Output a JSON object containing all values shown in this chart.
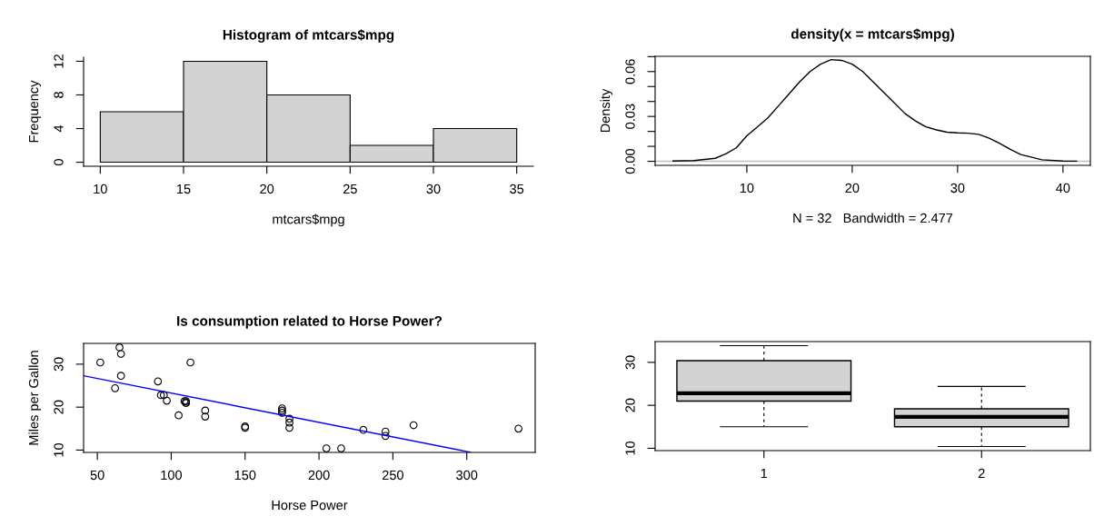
{
  "chart_data": [
    {
      "type": "histogram",
      "title": "Histogram of mtcars$mpg",
      "xlabel": "mtcars$mpg",
      "ylabel": "Frequency",
      "bins": [
        10,
        15,
        20,
        25,
        30,
        35
      ],
      "values": [
        6,
        12,
        8,
        2,
        4
      ],
      "color": "#d3d3d3",
      "xlim": [
        9,
        36
      ],
      "ylim": [
        -0.48,
        12.48
      ],
      "xticks": [
        10,
        15,
        20,
        25,
        30,
        35
      ],
      "yticks": [
        0,
        4,
        8,
        12
      ]
    },
    {
      "type": "line",
      "title": "density(x = mtcars$mpg)",
      "xlabel": "N = 32   Bandwidth = 2.477",
      "ylabel": "Density",
      "x": [
        3,
        5,
        7,
        8,
        9,
        10,
        11,
        12,
        13,
        14,
        15,
        16,
        17,
        18,
        19,
        20,
        21,
        22,
        23,
        24,
        25,
        26,
        27,
        28,
        29,
        30,
        31,
        32,
        33,
        34,
        35,
        36,
        38,
        40,
        41.3
      ],
      "series": [
        {
          "color": "#000000",
          "values": [
            0.0002,
            0.0005,
            0.002,
            0.005,
            0.009,
            0.017,
            0.023,
            0.029,
            0.037,
            0.045,
            0.053,
            0.06,
            0.065,
            0.068,
            0.0675,
            0.065,
            0.06,
            0.053,
            0.046,
            0.039,
            0.032,
            0.027,
            0.023,
            0.021,
            0.0195,
            0.019,
            0.0188,
            0.018,
            0.0155,
            0.012,
            0.008,
            0.0045,
            0.001,
            0.0002,
            0.0001
          ]
        }
      ],
      "ref_lines": [
        {
          "axis": "y",
          "value": 0,
          "color": "#bebebe"
        }
      ],
      "xlim": [
        1.3,
        42.6
      ],
      "ylim": [
        -0.0027,
        0.0702
      ],
      "xticks": [
        10,
        20,
        30,
        40
      ],
      "yticks": [
        {
          "value": 0,
          "label": "0.00"
        },
        {
          "value": 0.01,
          "label": null
        },
        {
          "value": 0.02,
          "label": null
        },
        {
          "value": 0.03,
          "label": "0.03"
        },
        {
          "value": 0.04,
          "label": null
        },
        {
          "value": 0.05,
          "label": null
        },
        {
          "value": 0.06,
          "label": "0.06"
        },
        {
          "value": 0.07,
          "label": null
        }
      ]
    },
    {
      "type": "scatter",
      "title": "Is consumption related to Horse Power?",
      "xlabel": "Horse Power",
      "ylabel": "Miles per Gallon",
      "series": [
        {
          "marker": "circle",
          "color": "#000000",
          "x": [
            110,
            110,
            93,
            110,
            175,
            105,
            245,
            62,
            95,
            123,
            123,
            180,
            180,
            180,
            205,
            215,
            230,
            66,
            52,
            65,
            97,
            150,
            150,
            245,
            175,
            66,
            91,
            113,
            264,
            175,
            335,
            109
          ],
          "values": [
            21.0,
            21.0,
            22.8,
            21.4,
            18.7,
            18.1,
            14.3,
            24.4,
            22.8,
            19.2,
            17.8,
            16.4,
            17.3,
            15.2,
            10.4,
            10.4,
            14.7,
            32.4,
            30.4,
            33.9,
            21.5,
            15.5,
            15.2,
            13.3,
            19.2,
            27.3,
            26.0,
            30.4,
            15.8,
            19.7,
            15.0,
            21.4
          ]
        },
        {
          "type": "line",
          "color": "#0000ff",
          "x": [
            40.7,
            302.5
          ],
          "values": [
            27.3,
            9.5
          ]
        }
      ],
      "xlim": [
        40.7,
        346.3
      ],
      "ylim": [
        9.46,
        34.84
      ],
      "xticks": [
        50,
        100,
        150,
        200,
        250,
        300
      ],
      "yticks": [
        10,
        20,
        30
      ]
    },
    {
      "type": "box",
      "categories": [
        "1",
        "2"
      ],
      "color": "#d3d3d3",
      "boxes": [
        {
          "low": 15.0,
          "q1": 21.0,
          "median": 22.8,
          "q3": 30.4,
          "high": 33.9
        },
        {
          "low": 10.4,
          "q1": 15.0,
          "median": 17.3,
          "q3": 19.2,
          "high": 24.4
        }
      ],
      "ylim": [
        9.46,
        34.84
      ],
      "yticks": [
        10,
        20,
        30
      ]
    }
  ]
}
